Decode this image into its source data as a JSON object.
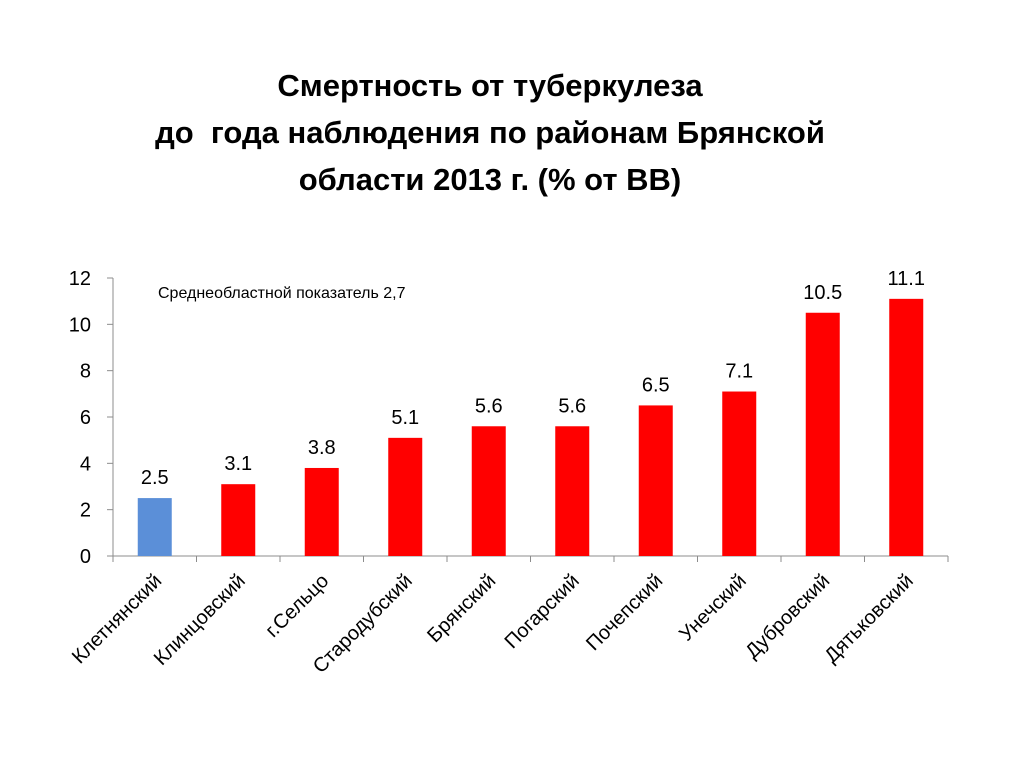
{
  "slide": {
    "title_lines": [
      "Смертность от туберкулеза",
      "до  года наблюдения по районам Брянской",
      "области 2013 г. (% от ВВ)"
    ]
  },
  "chart_data": {
    "type": "bar",
    "title": "Смертность от туберкулеза до  года наблюдения по районам Брянской области 2013 г. (% от ВВ)",
    "xlabel": "",
    "ylabel": "",
    "ylim": [
      0,
      12
    ],
    "yticks": [
      "0",
      "2",
      "4",
      "6",
      "8",
      "10",
      "12"
    ],
    "grid": false,
    "legend": "none",
    "categories": [
      "Клетнянский",
      "Клинцовский",
      "г.Сельцо",
      "Стародубский",
      "Брянский",
      "Погарский",
      "Почепский",
      "Унечский",
      "Дубровский",
      "Дятьковский"
    ],
    "values": [
      2.5,
      3.1,
      3.8,
      5.1,
      5.6,
      5.6,
      6.5,
      7.1,
      10.5,
      11.1
    ],
    "value_labels": [
      "2.5",
      "3.1",
      "3.8",
      "5.1",
      "5.6",
      "5.6",
      "6.5",
      "7.1",
      "10.5",
      "11.1"
    ],
    "bar_colors": [
      "#5B8FD8",
      "#FF0000",
      "#FF0000",
      "#FF0000",
      "#FF0000",
      "#FF0000",
      "#FF0000",
      "#FF0000",
      "#FF0000",
      "#FF0000"
    ],
    "annotation": "Среднеобластной показатель 2,7"
  }
}
